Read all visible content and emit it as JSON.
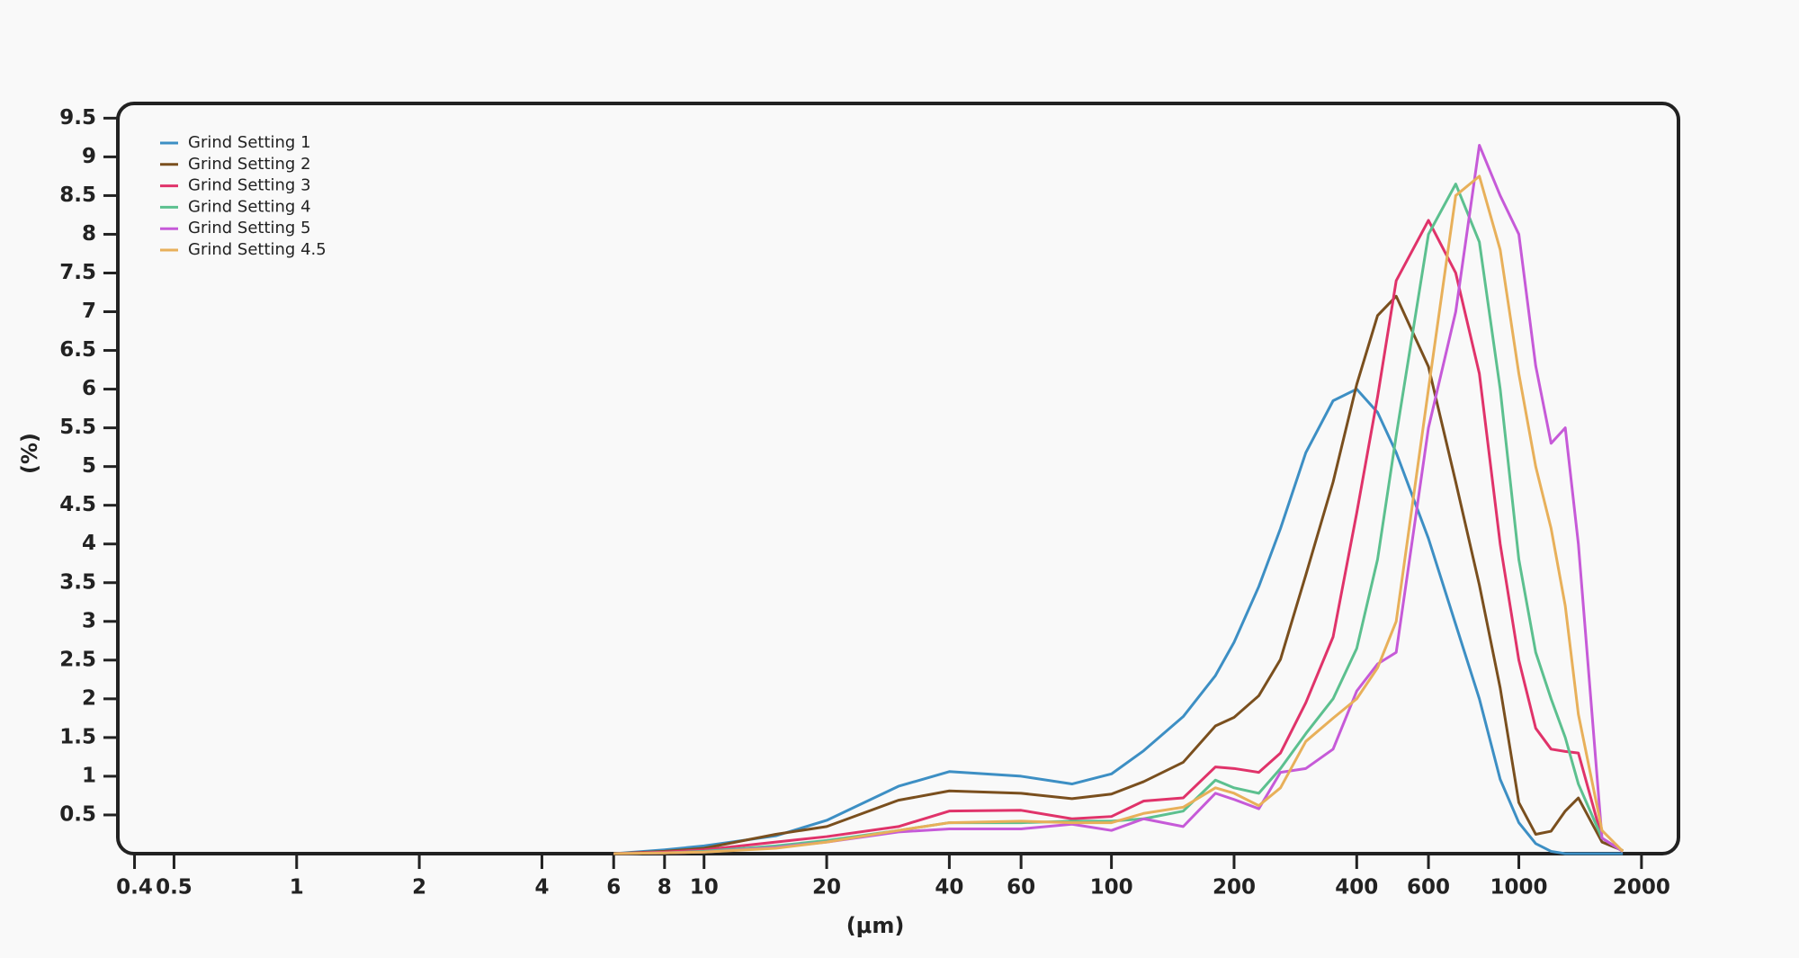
{
  "chart_data": {
    "type": "line",
    "x_label": "(μm)",
    "y_label": "(%)",
    "x_scale": "log",
    "grid": false,
    "legend": "top-left",
    "x": [
      6,
      8,
      10,
      15,
      20,
      30,
      40,
      60,
      80,
      100,
      120,
      150,
      180,
      200,
      230,
      260,
      300,
      350,
      400,
      450,
      500,
      600,
      700,
      800,
      900,
      1000,
      1100,
      1200,
      1300,
      1400,
      1600,
      1800
    ],
    "series": [
      {
        "name": "Grind Setting 1",
        "color": "#3d8fc4",
        "values": [
          0,
          0.05,
          0.1,
          0.23,
          0.43,
          0.87,
          1.06,
          1.0,
          0.9,
          1.03,
          1.33,
          1.77,
          2.3,
          2.73,
          3.45,
          4.2,
          5.18,
          5.85,
          6.0,
          5.7,
          5.18,
          4.07,
          2.96,
          2.0,
          0.96,
          0.4,
          0.13,
          0.03,
          0,
          0,
          0,
          0
        ]
      },
      {
        "name": "Grind Setting 2",
        "color": "#7a4f1e",
        "values": [
          0,
          0.03,
          0.07,
          0.25,
          0.35,
          0.69,
          0.81,
          0.78,
          0.71,
          0.77,
          0.93,
          1.18,
          1.65,
          1.76,
          2.04,
          2.51,
          3.6,
          4.8,
          6.06,
          6.95,
          7.2,
          6.29,
          4.8,
          3.47,
          2.14,
          0.66,
          0.25,
          0.29,
          0.55,
          0.72,
          0.15,
          0.04
        ]
      },
      {
        "name": "Grind Setting 3",
        "color": "#e0336a",
        "values": [
          0,
          0.02,
          0.05,
          0.15,
          0.22,
          0.35,
          0.55,
          0.56,
          0.45,
          0.48,
          0.68,
          0.72,
          1.12,
          1.1,
          1.05,
          1.3,
          1.95,
          2.8,
          4.4,
          5.9,
          7.4,
          8.18,
          7.5,
          6.2,
          4.0,
          2.5,
          1.62,
          1.35,
          1.32,
          1.3,
          0.2,
          0.03
        ]
      },
      {
        "name": "Grind Setting 4",
        "color": "#5cc08f",
        "values": [
          0,
          0.01,
          0.03,
          0.1,
          0.17,
          0.3,
          0.4,
          0.4,
          0.42,
          0.42,
          0.45,
          0.55,
          0.95,
          0.85,
          0.78,
          1.1,
          1.55,
          2.0,
          2.65,
          3.8,
          5.4,
          8.0,
          8.65,
          7.9,
          6.0,
          3.8,
          2.6,
          2.0,
          1.5,
          0.9,
          0.2,
          0.03
        ]
      },
      {
        "name": "Grind Setting 5",
        "color": "#c65ad8",
        "values": [
          0,
          0.01,
          0.02,
          0.08,
          0.15,
          0.28,
          0.32,
          0.32,
          0.38,
          0.3,
          0.45,
          0.35,
          0.78,
          0.7,
          0.58,
          1.05,
          1.1,
          1.35,
          2.1,
          2.45,
          2.6,
          5.5,
          7.0,
          9.15,
          8.5,
          8.0,
          6.3,
          5.3,
          5.5,
          4.0,
          0.2,
          0.03
        ]
      },
      {
        "name": "Grind Setting 4.5",
        "color": "#e8b05a",
        "values": [
          0,
          0.01,
          0.02,
          0.07,
          0.15,
          0.3,
          0.4,
          0.42,
          0.4,
          0.4,
          0.52,
          0.6,
          0.85,
          0.78,
          0.62,
          0.85,
          1.45,
          1.75,
          2.0,
          2.4,
          3.0,
          6.0,
          8.5,
          8.75,
          7.8,
          6.2,
          5.0,
          4.2,
          3.2,
          1.8,
          0.3,
          0.03
        ]
      }
    ],
    "xlim": [
      0.364,
      2465
    ],
    "ylim": [
      0,
      9.69
    ],
    "xticks": [
      0.4,
      0.5,
      1,
      2,
      4,
      6,
      8,
      10,
      20,
      40,
      60,
      100,
      200,
      400,
      600,
      1000,
      2000
    ],
    "yticks": [
      0.5,
      1,
      1.5,
      2,
      2.5,
      3,
      3.5,
      4,
      4.5,
      5,
      5.5,
      6,
      6.5,
      7,
      7.5,
      8,
      8.5,
      9,
      9.5
    ]
  }
}
